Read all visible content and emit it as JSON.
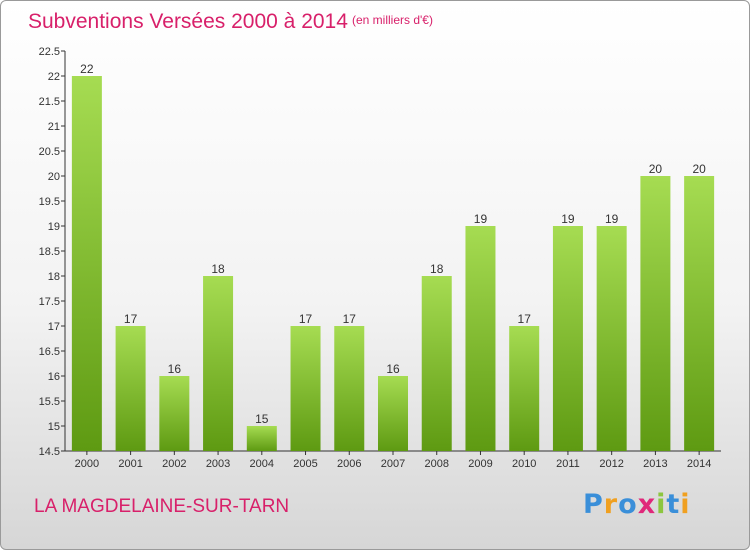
{
  "title": "Subventions Versées 2000 à 2014",
  "unit_note": "(en milliers d'€)",
  "commune": "LA MAGDELAINE-SUR-TARN",
  "logo": {
    "text": "Proxiti",
    "letters": [
      {
        "char": "P",
        "color": "#3a8fd9"
      },
      {
        "char": "r",
        "color": "#f0a020"
      },
      {
        "char": "o",
        "color": "#3a8fd9"
      },
      {
        "char": "x",
        "color": "#e0287a"
      },
      {
        "char": "i",
        "color": "#8cc63f"
      },
      {
        "char": "t",
        "color": "#3a8fd9"
      },
      {
        "char": "i",
        "color": "#f0a020"
      }
    ]
  },
  "colors": {
    "accent": "#d8206a",
    "bar_light": "#a6dc52",
    "bar_dark": "#5e9a12"
  },
  "chart_data": {
    "type": "bar",
    "title": "Subventions Versées 2000 à 2014",
    "subtitle": "(en milliers d'€)",
    "xlabel": "",
    "ylabel": "",
    "categories": [
      "2000",
      "2001",
      "2002",
      "2003",
      "2004",
      "2005",
      "2006",
      "2007",
      "2008",
      "2009",
      "2010",
      "2011",
      "2012",
      "2013",
      "2014"
    ],
    "values": [
      22,
      17,
      16,
      18,
      15,
      17,
      17,
      16,
      18,
      19,
      17,
      19,
      19,
      20,
      20
    ],
    "ylim": [
      14.5,
      22.5
    ],
    "yticks": [
      "14.5",
      "15",
      "15.5",
      "16",
      "16.5",
      "17",
      "17.5",
      "18",
      "18.5",
      "19",
      "19.5",
      "20",
      "20.5",
      "21",
      "21.5",
      "22",
      "22.5"
    ],
    "grid": false,
    "legend": "none"
  }
}
